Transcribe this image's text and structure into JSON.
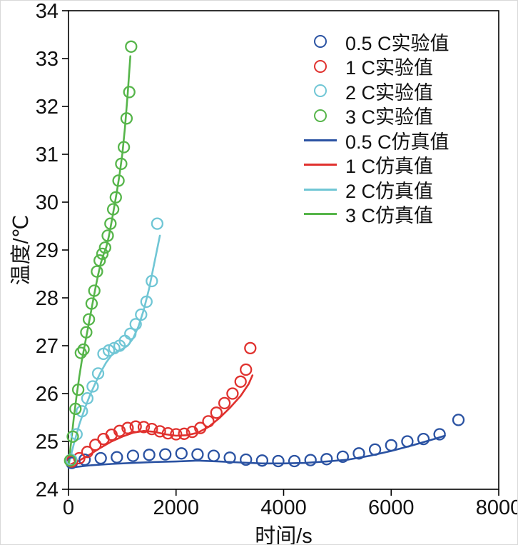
{
  "figure": {
    "xlabel": "时间/s",
    "ylabel": "温度/℃"
  },
  "chart_data": {
    "type": "scatter",
    "title": "",
    "xlabel": "时间/s",
    "ylabel": "温度/℃",
    "xlim": [
      0,
      8000
    ],
    "ylim": [
      24,
      34
    ],
    "x_ticks": [
      0,
      2000,
      4000,
      6000,
      8000
    ],
    "y_ticks": [
      24,
      25,
      26,
      27,
      28,
      29,
      30,
      31,
      32,
      33,
      34
    ],
    "grid": false,
    "legend_position": "upper-right-inside",
    "series": [
      {
        "name": "0.5 C实验值",
        "type": "scatter",
        "color": "#2a52a2",
        "points": [
          [
            60,
            24.55
          ],
          [
            300,
            24.62
          ],
          [
            600,
            24.65
          ],
          [
            900,
            24.67
          ],
          [
            1200,
            24.7
          ],
          [
            1500,
            24.72
          ],
          [
            1800,
            24.73
          ],
          [
            2100,
            24.75
          ],
          [
            2400,
            24.73
          ],
          [
            2700,
            24.7
          ],
          [
            3000,
            24.66
          ],
          [
            3300,
            24.62
          ],
          [
            3600,
            24.6
          ],
          [
            3900,
            24.59
          ],
          [
            4200,
            24.59
          ],
          [
            4500,
            24.61
          ],
          [
            4800,
            24.63
          ],
          [
            5100,
            24.68
          ],
          [
            5400,
            24.75
          ],
          [
            5700,
            24.83
          ],
          [
            6000,
            24.92
          ],
          [
            6300,
            25.0
          ],
          [
            6600,
            25.05
          ],
          [
            6900,
            25.15
          ],
          [
            7250,
            25.45
          ]
        ]
      },
      {
        "name": "1 C实验值",
        "type": "scatter",
        "color": "#e0312e",
        "points": [
          [
            60,
            24.58
          ],
          [
            200,
            24.65
          ],
          [
            350,
            24.78
          ],
          [
            500,
            24.93
          ],
          [
            650,
            25.05
          ],
          [
            800,
            25.14
          ],
          [
            950,
            25.22
          ],
          [
            1100,
            25.28
          ],
          [
            1250,
            25.31
          ],
          [
            1400,
            25.3
          ],
          [
            1550,
            25.26
          ],
          [
            1700,
            25.21
          ],
          [
            1850,
            25.17
          ],
          [
            2000,
            25.15
          ],
          [
            2150,
            25.16
          ],
          [
            2300,
            25.2
          ],
          [
            2450,
            25.28
          ],
          [
            2600,
            25.42
          ],
          [
            2750,
            25.6
          ],
          [
            2900,
            25.8
          ],
          [
            3050,
            26.0
          ],
          [
            3200,
            26.25
          ],
          [
            3300,
            26.5
          ],
          [
            3380,
            26.95
          ]
        ]
      },
      {
        "name": "2 C实验值",
        "type": "scatter",
        "color": "#70c6d5",
        "points": [
          [
            50,
            24.62
          ],
          [
            150,
            25.15
          ],
          [
            250,
            25.63
          ],
          [
            350,
            25.9
          ],
          [
            450,
            26.15
          ],
          [
            550,
            26.42
          ],
          [
            650,
            26.83
          ],
          [
            750,
            26.9
          ],
          [
            850,
            26.95
          ],
          [
            950,
            27.0
          ],
          [
            1050,
            27.1
          ],
          [
            1150,
            27.25
          ],
          [
            1250,
            27.45
          ],
          [
            1350,
            27.65
          ],
          [
            1450,
            27.92
          ],
          [
            1550,
            28.35
          ],
          [
            1650,
            29.55
          ]
        ]
      },
      {
        "name": "3 C实验值",
        "type": "scatter",
        "color": "#56b54a",
        "points": [
          [
            30,
            24.6
          ],
          [
            80,
            25.1
          ],
          [
            130,
            25.68
          ],
          [
            180,
            26.08
          ],
          [
            230,
            26.85
          ],
          [
            280,
            26.92
          ],
          [
            330,
            27.28
          ],
          [
            380,
            27.55
          ],
          [
            430,
            27.88
          ],
          [
            480,
            28.15
          ],
          [
            530,
            28.55
          ],
          [
            580,
            28.78
          ],
          [
            630,
            28.92
          ],
          [
            680,
            29.05
          ],
          [
            730,
            29.3
          ],
          [
            780,
            29.55
          ],
          [
            830,
            29.85
          ],
          [
            880,
            30.1
          ],
          [
            930,
            30.45
          ],
          [
            980,
            30.8
          ],
          [
            1030,
            31.15
          ],
          [
            1080,
            31.75
          ],
          [
            1130,
            32.3
          ],
          [
            1165,
            33.25
          ]
        ]
      },
      {
        "name": "0.5 C仿真值",
        "type": "line",
        "color": "#2a52a2",
        "points": [
          [
            0,
            24.45
          ],
          [
            400,
            24.5
          ],
          [
            800,
            24.53
          ],
          [
            1200,
            24.55
          ],
          [
            1600,
            24.57
          ],
          [
            2000,
            24.58
          ],
          [
            2400,
            24.6
          ],
          [
            2800,
            24.58
          ],
          [
            3200,
            24.56
          ],
          [
            3600,
            24.54
          ],
          [
            4000,
            24.54
          ],
          [
            4400,
            24.55
          ],
          [
            4800,
            24.58
          ],
          [
            5200,
            24.62
          ],
          [
            5600,
            24.7
          ],
          [
            6000,
            24.8
          ],
          [
            6400,
            24.92
          ],
          [
            6800,
            25.05
          ],
          [
            7000,
            25.12
          ]
        ]
      },
      {
        "name": "1 C仿真值",
        "type": "line",
        "color": "#e0312e",
        "points": [
          [
            0,
            24.5
          ],
          [
            200,
            24.6
          ],
          [
            400,
            24.73
          ],
          [
            600,
            24.87
          ],
          [
            800,
            25.0
          ],
          [
            1000,
            25.1
          ],
          [
            1200,
            25.18
          ],
          [
            1400,
            25.22
          ],
          [
            1600,
            25.2
          ],
          [
            1800,
            25.15
          ],
          [
            2000,
            25.12
          ],
          [
            2200,
            25.13
          ],
          [
            2400,
            25.18
          ],
          [
            2600,
            25.3
          ],
          [
            2800,
            25.48
          ],
          [
            3000,
            25.7
          ],
          [
            3200,
            25.95
          ],
          [
            3350,
            26.2
          ],
          [
            3420,
            26.38
          ]
        ]
      },
      {
        "name": "2 C仿真值",
        "type": "line",
        "color": "#70c6d5",
        "points": [
          [
            0,
            24.5
          ],
          [
            100,
            24.95
          ],
          [
            200,
            25.35
          ],
          [
            300,
            25.68
          ],
          [
            400,
            25.97
          ],
          [
            500,
            26.22
          ],
          [
            600,
            26.45
          ],
          [
            700,
            26.65
          ],
          [
            800,
            26.8
          ],
          [
            900,
            26.88
          ],
          [
            1000,
            26.93
          ],
          [
            1100,
            27.0
          ],
          [
            1200,
            27.15
          ],
          [
            1300,
            27.4
          ],
          [
            1400,
            27.75
          ],
          [
            1500,
            28.2
          ],
          [
            1600,
            28.75
          ],
          [
            1700,
            29.3
          ]
        ]
      },
      {
        "name": "3 C仿真值",
        "type": "line",
        "color": "#56b54a",
        "points": [
          [
            0,
            24.5
          ],
          [
            50,
            25.0
          ],
          [
            100,
            25.5
          ],
          [
            150,
            25.95
          ],
          [
            200,
            26.35
          ],
          [
            250,
            26.7
          ],
          [
            300,
            27.0
          ],
          [
            350,
            27.3
          ],
          [
            400,
            27.6
          ],
          [
            450,
            27.9
          ],
          [
            500,
            28.2
          ],
          [
            550,
            28.48
          ],
          [
            600,
            28.72
          ],
          [
            650,
            28.9
          ],
          [
            700,
            29.05
          ],
          [
            750,
            29.28
          ],
          [
            800,
            29.58
          ],
          [
            850,
            29.9
          ],
          [
            900,
            30.22
          ],
          [
            950,
            30.58
          ],
          [
            1000,
            31.0
          ],
          [
            1050,
            31.55
          ],
          [
            1100,
            32.25
          ],
          [
            1150,
            33.05
          ]
        ]
      }
    ]
  }
}
